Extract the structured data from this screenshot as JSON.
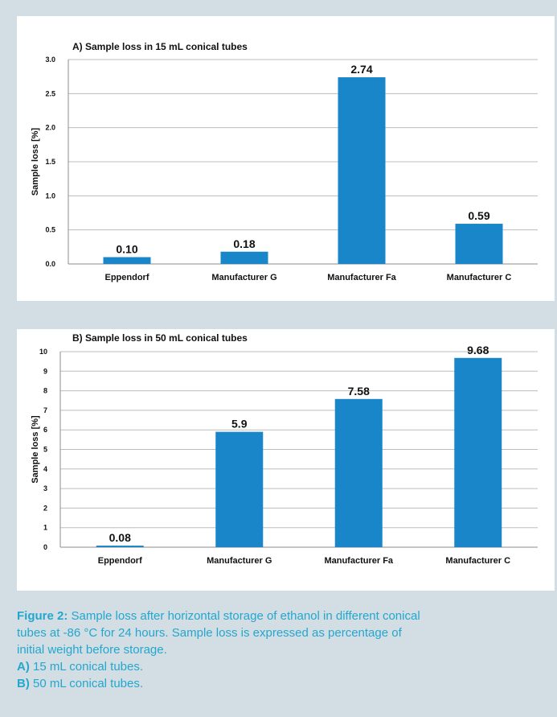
{
  "colors": {
    "bar": "#1a86ca",
    "grid": "#bdbdbd",
    "axis": "#8c8c8c",
    "caption": "#23a7cd",
    "panel_bg": "#d3dde4"
  },
  "chart_data": [
    {
      "type": "bar",
      "title": "A) Sample loss in 15 mL conical tubes",
      "ylabel": "Sample loss [%]",
      "xlabel": "",
      "categories": [
        "Eppendorf",
        "Manufacturer G",
        "Manufacturer Fa",
        "Manufacturer C"
      ],
      "values": [
        0.1,
        0.18,
        2.74,
        0.59
      ],
      "value_labels": [
        "0.10",
        "0.18",
        "2.74",
        "0.59"
      ],
      "ylim": [
        0,
        3.0
      ],
      "yticks": [
        "0.0",
        "0.5",
        "1.0",
        "1.5",
        "2.0",
        "2.5",
        "3.0"
      ],
      "grid": true,
      "legend": "none"
    },
    {
      "type": "bar",
      "title": "B) Sample loss in 50 mL conical tubes",
      "ylabel": "Sample loss [%]",
      "xlabel": "",
      "categories": [
        "Eppendorf",
        "Manufacturer G",
        "Manufacturer Fa",
        "Manufacturer C"
      ],
      "values": [
        0.08,
        5.9,
        7.58,
        9.68
      ],
      "value_labels": [
        "0.08",
        "5.9",
        "7.58",
        "9.68"
      ],
      "ylim": [
        0,
        10
      ],
      "yticks": [
        "0",
        "1",
        "2",
        "3",
        "4",
        "5",
        "6",
        "7",
        "8",
        "9",
        "10"
      ],
      "grid": true,
      "legend": "none"
    }
  ],
  "caption": {
    "label": "Figure 2:",
    "line1": " Sample loss after horizontal storage of ethanol in different conical",
    "line2": "tubes at -86 °C for 24 hours. Sample loss is expressed as percentage of",
    "line3": "initial weight before storage.",
    "a_label": "A)",
    "a_text": " 15 mL conical tubes.",
    "b_label": "B)",
    "b_text": " 50 mL conical tubes."
  }
}
